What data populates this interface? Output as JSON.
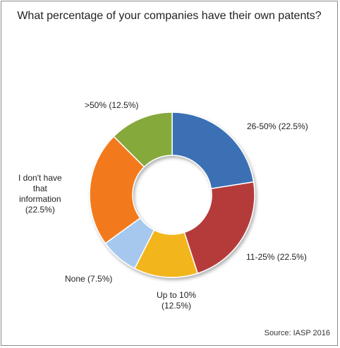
{
  "chart_data": {
    "type": "pie",
    "variant": "donut",
    "title": "What percentage of your companies have their own patents?",
    "source": "Source: IASP 2016",
    "slices": [
      {
        "label": "26-50%",
        "value": 22.5,
        "display": "26-50%  (22.5%)",
        "color": "#3a6fb5"
      },
      {
        "label": "11-25%",
        "value": 22.5,
        "display": "11-25%  (22.5%)",
        "color": "#b53a3a"
      },
      {
        "label": "Up to 10%",
        "value": 12.5,
        "display": "Up to 10%\n(12.5%)",
        "color": "#f2b51f"
      },
      {
        "label": "None",
        "value": 7.5,
        "display": "None  (7.5%)",
        "color": "#a6c8ef"
      },
      {
        "label": "I don't have that information",
        "value": 22.5,
        "display": "I don't  have\nthat\ninformation\n(22.5%)",
        "color": "#f27a1c"
      },
      {
        "label": ">50%",
        "value": 12.5,
        "display": ">50%  (12.5%)",
        "color": "#85a93a"
      }
    ]
  }
}
